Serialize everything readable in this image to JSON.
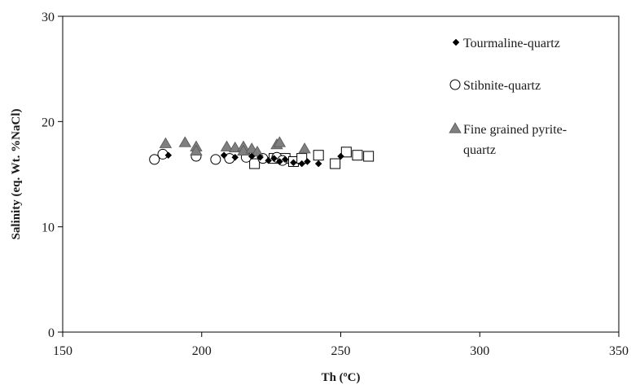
{
  "chart_data": {
    "type": "scatter",
    "xlabel": "Th (ºC)",
    "ylabel": "Salinity (eq. Wt. %NaCl)",
    "xlim": [
      150,
      350
    ],
    "ylim": [
      0,
      30
    ],
    "xticks": [
      150,
      200,
      250,
      300,
      350
    ],
    "yticks": [
      0,
      10,
      20,
      30
    ],
    "grid": false,
    "legend_placement": "top-right",
    "legend_lines": {
      "s1": [
        "Tourmaline-quartz"
      ],
      "s2": [
        "Stibnite-quartz"
      ],
      "s3": [
        "Fine grained pyrite-",
        "quartz"
      ]
    },
    "series": [
      {
        "id": "s1",
        "name": "Tourmaline-quartz",
        "marker": "diamond",
        "color": "#000000",
        "points": [
          [
            188,
            16.8
          ],
          [
            208,
            16.8
          ],
          [
            212,
            16.6
          ],
          [
            218,
            16.7
          ],
          [
            221,
            16.6
          ],
          [
            224,
            16.3
          ],
          [
            226,
            16.5
          ],
          [
            228,
            16.2
          ],
          [
            230,
            16.4
          ],
          [
            233,
            16.1
          ],
          [
            236,
            16.0
          ],
          [
            238,
            16.2
          ],
          [
            242,
            16.0
          ],
          [
            250,
            16.7
          ]
        ]
      },
      {
        "id": "s2",
        "name": "Stibnite-quartz",
        "marker": "circle",
        "color": "#000000",
        "points": [
          [
            183,
            16.4
          ],
          [
            186,
            16.9
          ],
          [
            198,
            16.7
          ],
          [
            205,
            16.4
          ],
          [
            210,
            16.5
          ],
          [
            216,
            16.6
          ],
          [
            222,
            16.5
          ],
          [
            227,
            16.6
          ],
          [
            229,
            16.3
          ]
        ]
      },
      {
        "id": "s3",
        "name": "Fine grained pyrite-quartz",
        "marker": "triangle",
        "color": "#7f7f7f",
        "points": [
          [
            187,
            17.9
          ],
          [
            194,
            18.0
          ],
          [
            198,
            17.6
          ],
          [
            198,
            17.2
          ],
          [
            209,
            17.6
          ],
          [
            212,
            17.5
          ],
          [
            215,
            17.6
          ],
          [
            215,
            17.2
          ],
          [
            218,
            17.4
          ],
          [
            220,
            17.1
          ],
          [
            227,
            17.8
          ],
          [
            228,
            18.0
          ],
          [
            237,
            17.4
          ]
        ]
      },
      {
        "id": "s4",
        "marker": "square",
        "color": "#000000",
        "points": [
          [
            219,
            16.0
          ],
          [
            226,
            16.5
          ],
          [
            230,
            16.5
          ],
          [
            233,
            16.2
          ],
          [
            236,
            16.5
          ],
          [
            242,
            16.8
          ],
          [
            248,
            16.0
          ],
          [
            252,
            17.1
          ],
          [
            256,
            16.8
          ],
          [
            260,
            16.7
          ]
        ]
      }
    ]
  }
}
